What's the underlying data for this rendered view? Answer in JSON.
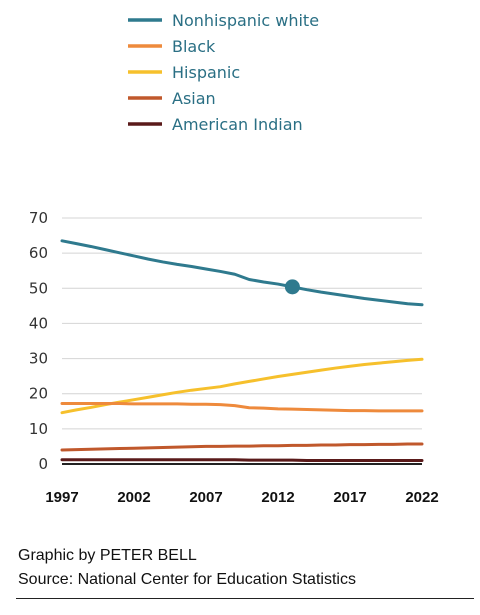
{
  "chart_data": {
    "type": "line",
    "title": "",
    "xlabel": "",
    "ylabel": "",
    "ylim": [
      0,
      70
    ],
    "xlim": [
      1997,
      2022
    ],
    "yticks": [
      0,
      10,
      20,
      30,
      40,
      50,
      60,
      70
    ],
    "xticks": [
      1997,
      2002,
      2007,
      2012,
      2017,
      2022
    ],
    "grid": true,
    "legend": "top-left",
    "x": [
      1997,
      1998,
      1999,
      2000,
      2001,
      2002,
      2003,
      2004,
      2005,
      2006,
      2007,
      2008,
      2009,
      2010,
      2011,
      2012,
      2013,
      2014,
      2015,
      2016,
      2017,
      2018,
      2019,
      2020,
      2021,
      2022
    ],
    "series": [
      {
        "name": "Nonhispanic white",
        "color": "#2f7a8e",
        "values": [
          63.5,
          62.7,
          61.9,
          61.0,
          60.1,
          59.2,
          58.3,
          57.5,
          56.8,
          56.2,
          55.5,
          54.8,
          54.0,
          52.5,
          51.8,
          51.2,
          50.4,
          49.6,
          48.9,
          48.3,
          47.7,
          47.1,
          46.6,
          46.1,
          45.6,
          45.3
        ],
        "marker": {
          "x": 2013,
          "y": 50.4
        }
      },
      {
        "name": "Black",
        "color": "#ee8a3c",
        "values": [
          17.2,
          17.2,
          17.2,
          17.2,
          17.2,
          17.1,
          17.1,
          17.1,
          17.1,
          17.0,
          17.0,
          16.9,
          16.6,
          16.0,
          15.9,
          15.7,
          15.6,
          15.5,
          15.4,
          15.3,
          15.2,
          15.2,
          15.1,
          15.1,
          15.1,
          15.1
        ]
      },
      {
        "name": "Hispanic",
        "color": "#f6c02c",
        "values": [
          14.6,
          15.4,
          16.1,
          16.9,
          17.6,
          18.3,
          19.0,
          19.7,
          20.4,
          21.0,
          21.5,
          22.0,
          22.8,
          23.5,
          24.2,
          24.9,
          25.5,
          26.1,
          26.7,
          27.3,
          27.8,
          28.3,
          28.7,
          29.1,
          29.5,
          29.8
        ]
      },
      {
        "name": "Asian",
        "color": "#c0582c",
        "values": [
          4.0,
          4.1,
          4.2,
          4.3,
          4.4,
          4.5,
          4.6,
          4.7,
          4.8,
          4.9,
          5.0,
          5.0,
          5.1,
          5.1,
          5.2,
          5.2,
          5.3,
          5.3,
          5.4,
          5.4,
          5.5,
          5.5,
          5.6,
          5.6,
          5.7,
          5.7
        ]
      },
      {
        "name": "American Indian",
        "color": "#5a1a1a",
        "values": [
          1.2,
          1.2,
          1.2,
          1.2,
          1.2,
          1.2,
          1.2,
          1.2,
          1.2,
          1.2,
          1.2,
          1.2,
          1.2,
          1.1,
          1.1,
          1.1,
          1.1,
          1.0,
          1.0,
          1.0,
          1.0,
          1.0,
          1.0,
          1.0,
          1.0,
          1.0
        ]
      }
    ]
  },
  "credits": {
    "graphic": "Graphic by PETER BELL",
    "source": "Source: National Center for Education Statistics"
  }
}
